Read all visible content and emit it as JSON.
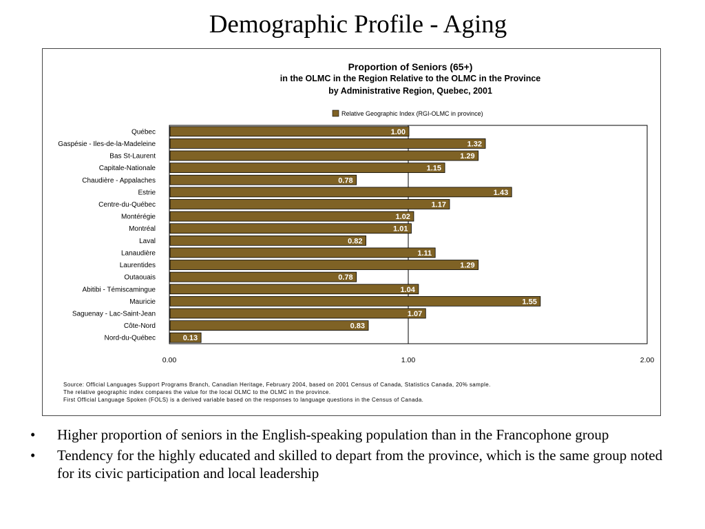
{
  "slide": {
    "title": "Demographic Profile - Aging",
    "bullets": [
      "Higher proportion of seniors in the English-speaking population than in the Francophone group",
      "Tendency for the highly educated and skilled to depart from the province, which is the same group noted for its civic participation and local leadership"
    ],
    "bullet_symbol": "•"
  },
  "chart_data": {
    "type": "bar",
    "orientation": "horizontal",
    "title": "Proportion of Seniors (65+)",
    "subtitle": [
      "in the OLMC in the Region Relative to the OLMC in the Province",
      "by Administrative Region, Quebec, 2001"
    ],
    "categories": [
      "Québec",
      "Gaspésie - Iles-de-la-Madeleine",
      "Bas St-Laurent",
      "Capitale-Nationale",
      "Chaudière - Appalaches",
      "Estrie",
      "Centre-du-Québec",
      "Montérégie",
      "Montréal",
      "Laval",
      "Lanaudière",
      "Laurentides",
      "Outaouais",
      "Abitibi - Témiscamingue",
      "Mauricie",
      "Saguenay - Lac-Saint-Jean",
      "Côte-Nord",
      "Nord-du-Québec"
    ],
    "series": [
      {
        "name": "Relative Geographic Index (RGI-OLMC in province)",
        "values": [
          1.0,
          1.32,
          1.29,
          1.15,
          0.78,
          1.43,
          1.17,
          1.02,
          1.01,
          0.82,
          1.11,
          1.29,
          0.78,
          1.04,
          1.55,
          1.07,
          0.83,
          0.13
        ]
      }
    ],
    "value_labels": [
      "1.00",
      "1.32",
      "1.29",
      "1.15",
      "0.78",
      "1.43",
      "1.17",
      "1.02",
      "1.01",
      "0.82",
      "1.11",
      "1.29",
      "0.78",
      "1.04",
      "1.55",
      "1.07",
      "0.83",
      "0.13"
    ],
    "xlim": [
      0,
      2
    ],
    "xticks": [
      0,
      1,
      2
    ],
    "xtick_labels": [
      "0.00",
      "1.00",
      "2.00"
    ],
    "reference_line": 1.0,
    "grid": false,
    "legend_position": "top-center",
    "bar_color": "#7f6225",
    "notes": [
      "Source:  Official Languages Support Programs Branch, Canadian Heritage, February 2004, based on 2001 Census of Canada, Statistics Canada, 20% sample.",
      "The relative geographic index compares the value for the local OLMC to the OLMC in the province.",
      "First Official Language Spoken (FOLS) is a derived variable based on the responses to language questions in the Census of Canada."
    ]
  }
}
